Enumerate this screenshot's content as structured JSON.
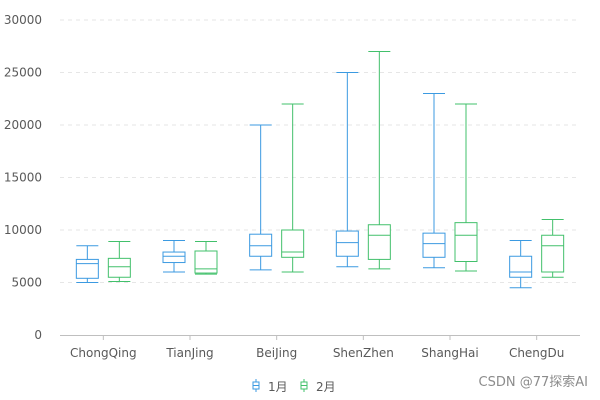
{
  "chart_data": {
    "type": "boxplot",
    "title": "",
    "xlabel": "",
    "ylabel": "",
    "ylim": [
      0,
      30000
    ],
    "yticks": [
      0,
      5000,
      10000,
      15000,
      20000,
      25000,
      30000
    ],
    "grid": "horizontal dashed",
    "legend": "bottom-center",
    "categories": [
      "ChongQing",
      "TianJing",
      "BeiJing",
      "ShenZhen",
      "ShangHai",
      "ChengDu"
    ],
    "series": [
      {
        "name": "1月",
        "color": "#3b9ae1",
        "boxes": [
          {
            "min": 5000,
            "q1": 5400,
            "median": 6800,
            "q3": 7200,
            "max": 8500
          },
          {
            "min": 6000,
            "q1": 6900,
            "median": 7500,
            "q3": 7900,
            "max": 9000
          },
          {
            "min": 6200,
            "q1": 7500,
            "median": 8500,
            "q3": 9600,
            "max": 20000
          },
          {
            "min": 6500,
            "q1": 7500,
            "median": 8800,
            "q3": 9900,
            "max": 25000
          },
          {
            "min": 6400,
            "q1": 7400,
            "median": 8700,
            "q3": 9700,
            "max": 23000
          },
          {
            "min": 4500,
            "q1": 5500,
            "median": 6000,
            "q3": 7500,
            "max": 9000
          }
        ]
      },
      {
        "name": "2月",
        "color": "#42c06b",
        "boxes": [
          {
            "min": 5100,
            "q1": 5500,
            "median": 6500,
            "q3": 7300,
            "max": 8900
          },
          {
            "min": 5800,
            "q1": 5900,
            "median": 6300,
            "q3": 8000,
            "max": 8900
          },
          {
            "min": 6000,
            "q1": 7400,
            "median": 7900,
            "q3": 10000,
            "max": 22000
          },
          {
            "min": 6300,
            "q1": 7200,
            "median": 9500,
            "q3": 10500,
            "max": 27000
          },
          {
            "min": 6100,
            "q1": 7000,
            "median": 9500,
            "q3": 10700,
            "max": 22000
          },
          {
            "min": 5500,
            "q1": 6000,
            "median": 8500,
            "q3": 9500,
            "max": 11000
          }
        ]
      }
    ]
  },
  "watermark": "CSDN @77探索AI"
}
